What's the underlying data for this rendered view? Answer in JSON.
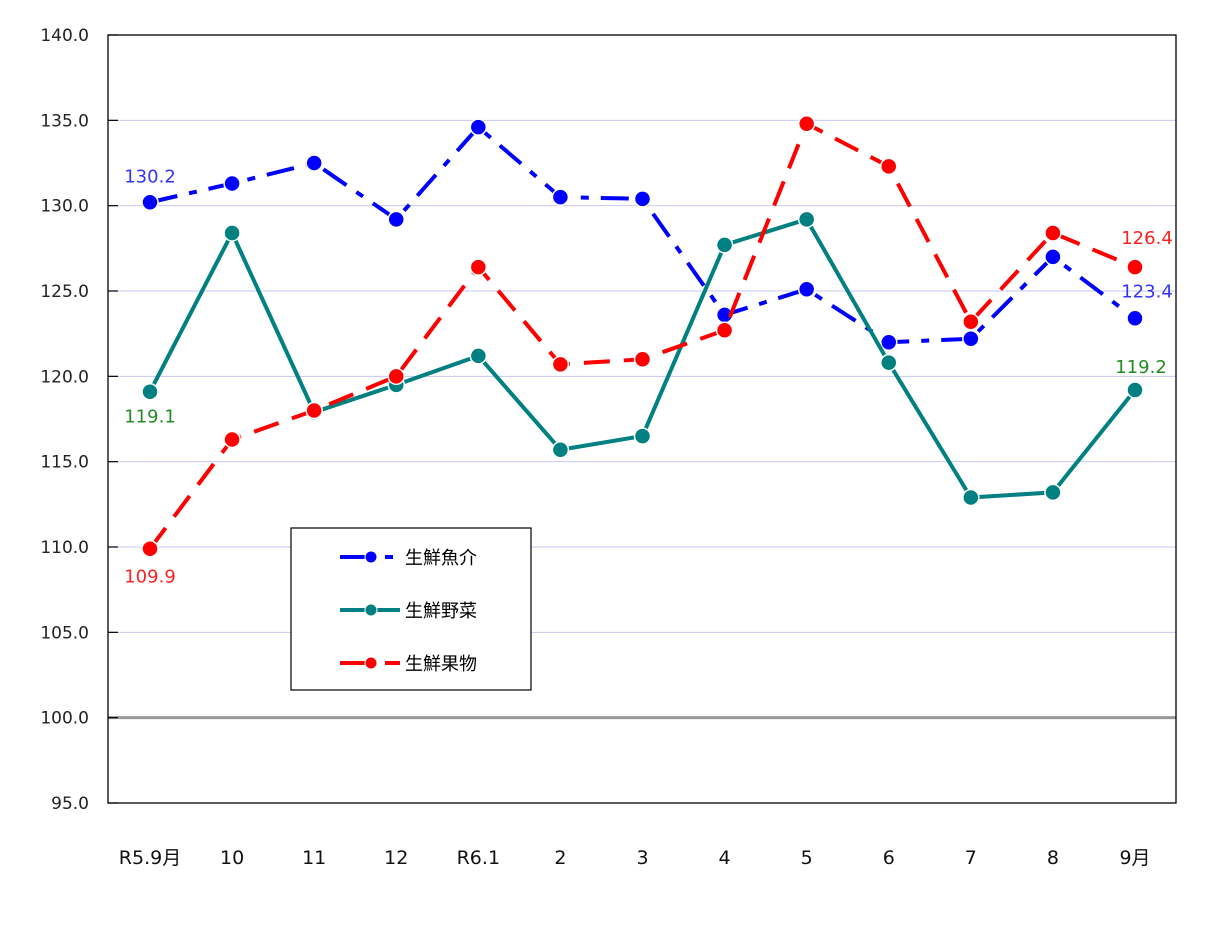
{
  "chart_data": {
    "type": "line",
    "title": "",
    "xlabel": "",
    "ylabel": "",
    "ylim": [
      95.0,
      140.0
    ],
    "yticks": [
      "140.0",
      "135.0",
      "130.0",
      "125.0",
      "120.0",
      "115.0",
      "110.0",
      "105.0",
      "100.0",
      "95.0"
    ],
    "grid": true,
    "reference_line": 100.0,
    "legend_position": "inside lower-left",
    "categories": [
      "R5.9月",
      "10",
      "11",
      "12",
      "R6.1",
      "2",
      "3",
      "4",
      "5",
      "6",
      "7",
      "8",
      "9月"
    ],
    "series": [
      {
        "name": "生鮮魚介",
        "color": "#0000ff",
        "style": "dash-dot",
        "values": [
          130.2,
          131.3,
          132.5,
          129.2,
          134.6,
          130.5,
          130.4,
          123.6,
          125.1,
          122.0,
          122.2,
          127.0,
          123.4
        ]
      },
      {
        "name": "生鮮野菜",
        "color": "#008080",
        "style": "solid",
        "values": [
          119.1,
          128.4,
          117.9,
          119.5,
          121.2,
          115.7,
          116.5,
          127.7,
          129.2,
          120.8,
          112.9,
          113.2,
          119.2
        ]
      },
      {
        "name": "生鮮果物",
        "color": "#ff0000",
        "style": "dashed",
        "values": [
          109.9,
          116.3,
          118.0,
          120.0,
          126.4,
          120.7,
          121.0,
          122.7,
          134.8,
          132.3,
          123.2,
          128.4,
          126.4
        ]
      }
    ],
    "annotations": [
      {
        "series": "生鮮魚介",
        "index": 0,
        "text": "130.2",
        "color": "#3333ff"
      },
      {
        "series": "生鮮魚介",
        "index": 12,
        "text": "123.4",
        "color": "#3333ff"
      },
      {
        "series": "生鮮野菜",
        "index": 0,
        "text": "119.1",
        "color": "#228b22"
      },
      {
        "series": "生鮮野菜",
        "index": 12,
        "text": "119.2",
        "color": "#228b22"
      },
      {
        "series": "生鮮果物",
        "index": 0,
        "text": "109.9",
        "color": "#ff2020"
      },
      {
        "series": "生鮮果物",
        "index": 12,
        "text": "126.4",
        "color": "#ff2020"
      }
    ]
  },
  "legend": {
    "items": [
      {
        "label": "生鮮魚介"
      },
      {
        "label": "生鮮野菜"
      },
      {
        "label": "生鮮果物"
      }
    ]
  }
}
